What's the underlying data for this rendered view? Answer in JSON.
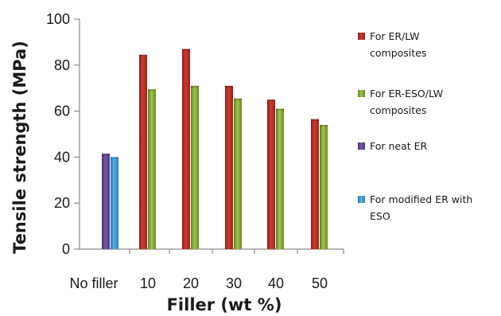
{
  "chart_data": {
    "type": "bar",
    "ylabel": "Tensile strength (MPa)",
    "xlabel": "Filler (wt %)",
    "ylim": [
      0,
      100
    ],
    "yticks": [
      "0",
      "20",
      "40",
      "60",
      "80",
      "100"
    ],
    "categories": [
      "No filler",
      "10",
      "20",
      "30",
      "40",
      "50"
    ],
    "legend_position": "right",
    "series": [
      {
        "name": "For ER/LW composites",
        "legend_lines": [
          "For ER/LW",
          "composites"
        ],
        "color": "#c0392b",
        "values": [
          null,
          84.5,
          87,
          71,
          65,
          56.5
        ]
      },
      {
        "name": "For ER-ESO/LW composites",
        "legend_lines": [
          "For ER-ESO/LW",
          "composites"
        ],
        "color": "#8cb33a",
        "values": [
          null,
          69.5,
          71,
          65.5,
          61,
          54
        ]
      },
      {
        "name": "For neat ER",
        "legend_lines": [
          "For neat ER"
        ],
        "color": "#6b4a9b",
        "values": [
          41.5,
          null,
          null,
          null,
          null,
          null
        ]
      },
      {
        "name": "For modified ER with ESO",
        "legend_lines": [
          "For modified ER with",
          "ESO"
        ],
        "color": "#3f9ad6",
        "values": [
          40,
          null,
          null,
          null,
          null,
          null
        ]
      }
    ]
  }
}
